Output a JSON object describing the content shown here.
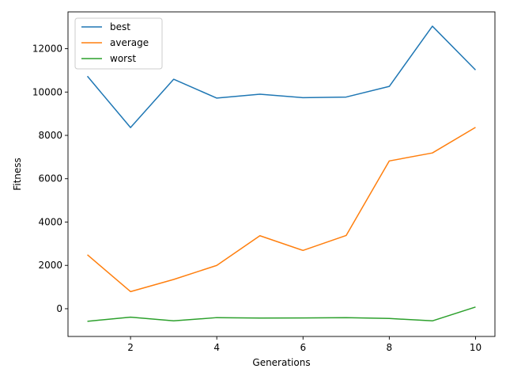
{
  "chart_data": {
    "type": "line",
    "title": "",
    "xlabel": "Generations",
    "ylabel": "Fitness",
    "xlim": [
      0.55,
      10.45
    ],
    "ylim": [
      -1280,
      13700
    ],
    "xticks": [
      2,
      4,
      6,
      8,
      10
    ],
    "yticks": [
      0,
      2000,
      4000,
      6000,
      8000,
      10000,
      12000
    ],
    "grid": false,
    "legend_position": "top-left",
    "x": [
      1,
      2,
      3,
      4,
      5,
      6,
      7,
      8,
      9,
      10
    ],
    "series": [
      {
        "name": "best",
        "color": "#1f77b4",
        "values": [
          10730,
          8360,
          10590,
          9720,
          9900,
          9740,
          9770,
          10260,
          13040,
          11020
        ]
      },
      {
        "name": "average",
        "color": "#ff7f0e",
        "values": [
          2490,
          790,
          1350,
          2000,
          3370,
          2690,
          3380,
          6820,
          7190,
          8370
        ]
      },
      {
        "name": "worst",
        "color": "#2ca02c",
        "values": [
          -580,
          -390,
          -560,
          -410,
          -430,
          -425,
          -410,
          -450,
          -560,
          80
        ]
      }
    ]
  }
}
